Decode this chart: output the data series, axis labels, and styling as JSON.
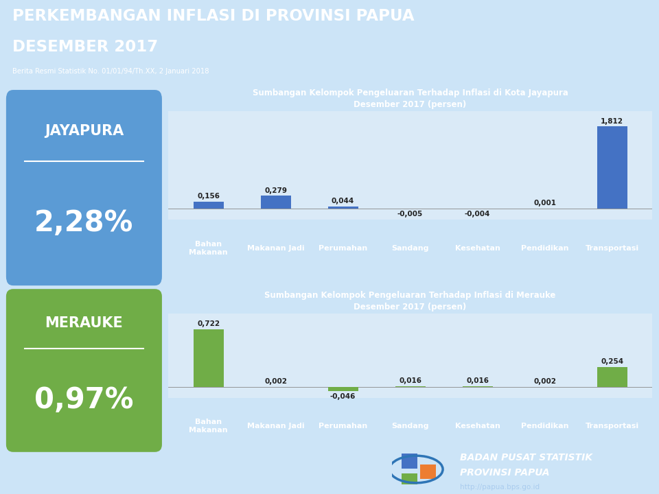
{
  "title_line1": "PERKEMBANGAN INFLASI DI PROVINSI PAPUA",
  "title_line2": "DESEMBER 2017",
  "subtitle": "Berita Resmi Statistik No. 01/01/94/Th.XX, 2 Januari 2018",
  "header_bg": "#0d2b6b",
  "bg_color": "#cce4f7",
  "jayapura_label": "JAYAPURA",
  "jayapura_value": "2,28%",
  "jayapura_box_color": "#5b9bd5",
  "merauke_label": "MERAUKE",
  "merauke_value": "0,97%",
  "merauke_box_color": "#70ad47",
  "chart1_title": "Sumbangan Kelompok Pengeluaran Terhadap Inflasi di Kota Jayapura\nDesember 2017 (persen)",
  "chart2_title": "Sumbangan Kelompok Pengeluaran Terhadap Inflasi di Merauke\nDesember 2017 (persen)",
  "categories": [
    "Bahan\nMakanan",
    "Makanan Jadi",
    "Perumahan",
    "Sandang",
    "Kesehatan",
    "Pendidikan",
    "Transportasi"
  ],
  "jayapura_values": [
    0.156,
    0.279,
    0.044,
    -0.005,
    -0.004,
    0.001,
    1.812
  ],
  "merauke_values": [
    0.722,
    0.002,
    -0.046,
    0.016,
    0.016,
    0.002,
    0.254
  ],
  "bar_color_jayapura": "#4472c4",
  "bar_color_merauke": "#70ad47",
  "chart_title_bg": "#1f3864",
  "chart_title_color": "#ffffff",
  "chart_area_bg": "#daeaf7",
  "xlabel_bg": "#1f3864",
  "xlabel_color": "#ffffff",
  "bps_bg": "#1f3864",
  "bps_text1": "BADAN PUSAT STATISTIK",
  "bps_text2": "PROVINSI PAPUA",
  "bps_text3": "http://papua.bps.go.id"
}
